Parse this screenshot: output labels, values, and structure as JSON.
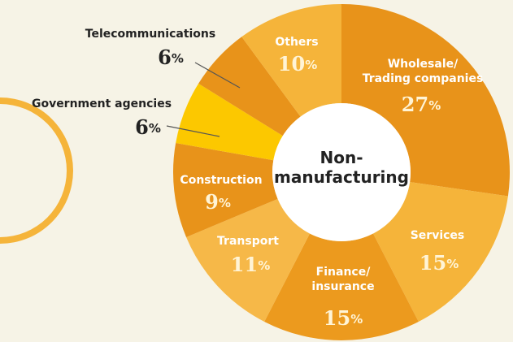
{
  "chart_data": {
    "type": "donut",
    "center_label": "Non-\nmanufacturing",
    "categories": [
      "Wholesale/\nTrading companies",
      "Services",
      "Finance/\ninsurance",
      "Transport",
      "Construction",
      "Government agencies",
      "Telecommunications",
      "Others"
    ],
    "values": [
      27,
      15,
      15,
      11,
      9,
      6,
      6,
      10
    ],
    "value_labels": [
      "27%",
      "15%",
      "15%",
      "11%",
      "9%",
      "6%",
      "6%",
      "10%"
    ],
    "colors": [
      "#e8931a",
      "#f5b43a",
      "#ec9a1e",
      "#f6b848",
      "#e8931a",
      "#fcc800",
      "#e8931a",
      "#f5b43a"
    ]
  }
}
